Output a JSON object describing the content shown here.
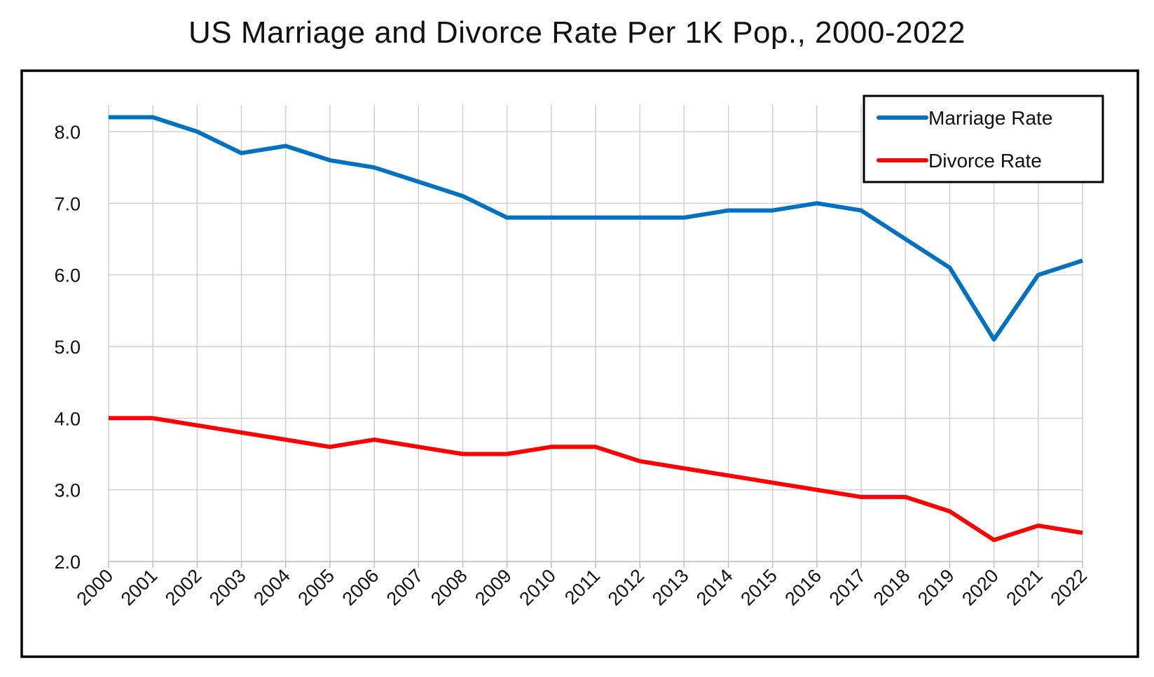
{
  "chart_data": {
    "type": "line",
    "title": "US Marriage and Divorce Rate Per 1K Pop., 2000-2022",
    "xlabel": "",
    "ylabel": "",
    "categories": [
      "2000",
      "2001",
      "2002",
      "2003",
      "2004",
      "2005",
      "2006",
      "2007",
      "2008",
      "2009",
      "2010",
      "2011",
      "2012",
      "2013",
      "2014",
      "2015",
      "2016",
      "2017",
      "2018",
      "2019",
      "2020",
      "2021",
      "2022"
    ],
    "ylim": [
      2.0,
      8.0
    ],
    "yticks": [
      "2.0",
      "3.0",
      "4.0",
      "5.0",
      "6.0",
      "7.0",
      "8.0"
    ],
    "grid": true,
    "legend_position": "top-right",
    "series": [
      {
        "name": "Marriage Rate",
        "color": "#0070C0",
        "values": [
          8.2,
          8.2,
          8.0,
          7.7,
          7.8,
          7.6,
          7.5,
          7.3,
          7.1,
          6.8,
          6.8,
          6.8,
          6.8,
          6.8,
          6.9,
          6.9,
          7.0,
          6.9,
          6.5,
          6.1,
          5.1,
          6.0,
          6.2
        ]
      },
      {
        "name": "Divorce Rate",
        "color": "#FF0000",
        "values": [
          4.0,
          4.0,
          3.9,
          3.8,
          3.7,
          3.6,
          3.7,
          3.6,
          3.5,
          3.5,
          3.6,
          3.6,
          3.4,
          3.3,
          3.2,
          3.1,
          3.0,
          2.9,
          2.9,
          2.7,
          2.3,
          2.5,
          2.4
        ]
      }
    ]
  }
}
